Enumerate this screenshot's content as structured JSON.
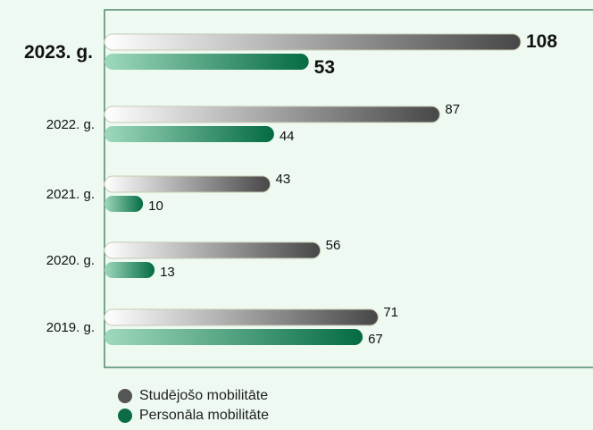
{
  "chart_data": {
    "type": "bar",
    "orientation": "horizontal",
    "categories": [
      "2023. g.",
      "2022. g.",
      "2021. g.",
      "2020. g.",
      "2019. g."
    ],
    "highlight_category": "2023. g.",
    "series": [
      {
        "name": "Studējošo mobilitāte",
        "values": [
          108,
          87,
          43,
          56,
          71
        ],
        "color": "#4a4a4a"
      },
      {
        "name": "Personāla mobilitāte",
        "values": [
          53,
          44,
          10,
          13,
          67
        ],
        "color": "#0a6b45"
      }
    ],
    "xlim": [
      0,
      108
    ],
    "legend_position": "bottom-left",
    "grid": false
  }
}
